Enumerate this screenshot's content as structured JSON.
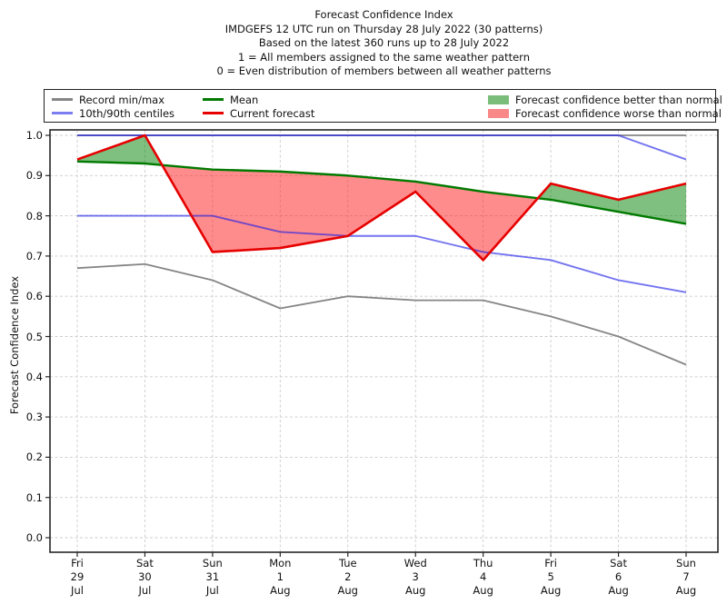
{
  "chart_data": {
    "type": "line",
    "title_lines": [
      "Forecast Confidence Index",
      "IMDGEFS 12 UTC run on Thursday 28 July 2022 (30 patterns)",
      "Based on the latest 360 runs up to 28 July 2022",
      "1 = All members assigned to the same weather pattern",
      "0 = Even distribution of members between all weather patterns"
    ],
    "ylabel": "Forecast Confidence Index",
    "ylim": [
      0.0,
      1.0
    ],
    "yticks": [
      "0.0",
      "0.1",
      "0.2",
      "0.3",
      "0.4",
      "0.5",
      "0.6",
      "0.7",
      "0.8",
      "0.9",
      "1.0"
    ],
    "grid": "dashed",
    "legend_position": "top",
    "x_labels": [
      [
        "Fri",
        "29",
        "Jul"
      ],
      [
        "Sat",
        "30",
        "Jul"
      ],
      [
        "Sun",
        "31",
        "Jul"
      ],
      [
        "Mon",
        "1",
        "Aug"
      ],
      [
        "Tue",
        "2",
        "Aug"
      ],
      [
        "Wed",
        "3",
        "Aug"
      ],
      [
        "Thu",
        "4",
        "Aug"
      ],
      [
        "Fri",
        "5",
        "Aug"
      ],
      [
        "Sat",
        "6",
        "Aug"
      ],
      [
        "Sun",
        "7",
        "Aug"
      ]
    ],
    "series": [
      {
        "id": "record_max",
        "name": "Record min/max",
        "values": [
          1.0,
          1.0,
          1.0,
          1.0,
          1.0,
          1.0,
          1.0,
          1.0,
          1.0,
          1.0
        ]
      },
      {
        "id": "record_min",
        "name": "Record min/max",
        "values": [
          0.67,
          0.68,
          0.64,
          0.57,
          0.6,
          0.59,
          0.59,
          0.55,
          0.5,
          0.43
        ]
      },
      {
        "id": "centile_90",
        "name": "10th/90th centiles",
        "values": [
          1.0,
          1.0,
          1.0,
          1.0,
          1.0,
          1.0,
          1.0,
          1.0,
          1.0,
          0.94
        ]
      },
      {
        "id": "centile_10",
        "name": "10th/90th centiles",
        "values": [
          0.8,
          0.8,
          0.8,
          0.76,
          0.75,
          0.75,
          0.71,
          0.69,
          0.64,
          0.61
        ]
      },
      {
        "id": "mean",
        "name": "Mean",
        "values": [
          0.935,
          0.93,
          0.915,
          0.91,
          0.9,
          0.885,
          0.86,
          0.84,
          0.81,
          0.78
        ]
      },
      {
        "id": "current",
        "name": "Current forecast",
        "values": [
          0.94,
          1.0,
          0.71,
          0.72,
          0.75,
          0.86,
          0.69,
          0.88,
          0.84,
          0.88
        ]
      }
    ],
    "fill_between": {
      "upper": "current",
      "lower": "mean",
      "positive_label": "Forecast confidence better than normal",
      "negative_label": "Forecast confidence worse than normal"
    }
  },
  "legend": {
    "items": [
      {
        "label": "Record min/max",
        "swatch": "line",
        "color": "record"
      },
      {
        "label": "10th/90th centiles",
        "swatch": "line",
        "color": "legend_line_centiles"
      },
      {
        "label": "Mean",
        "swatch": "line",
        "color": "mean"
      },
      {
        "label": "Current forecast",
        "swatch": "line",
        "color": "current"
      },
      {
        "label": "Forecast confidence better than normal",
        "swatch": "patch",
        "color": "legend_patch_better"
      },
      {
        "label": "Forecast confidence worse than normal",
        "swatch": "patch",
        "color": "legend_patch_worse"
      }
    ]
  },
  "colors": {
    "record": "#858585",
    "centiles": "#1f1fe8",
    "mean": "#007a00",
    "current": "#e60000",
    "fill_better": "#008000",
    "fill_worse": "#ff1a1a",
    "legend_line_centiles": "#7d7df2",
    "legend_patch_better": "#7abd7a",
    "legend_patch_worse": "#f98888",
    "grid": "#cccccc",
    "frame": "#262626",
    "text": "#111111"
  }
}
